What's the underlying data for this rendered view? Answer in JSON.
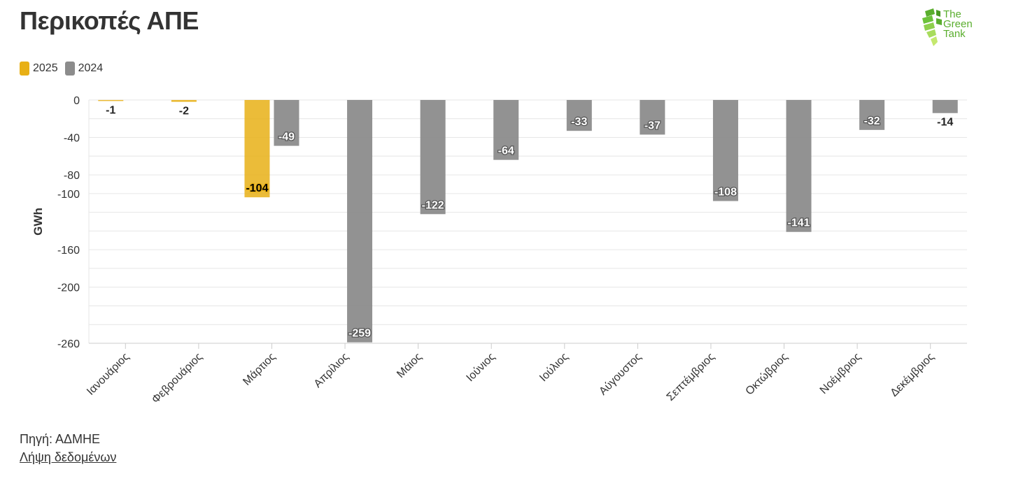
{
  "header": {
    "title": "Περικοπές ΑΠΕ",
    "logo_text_1": "The",
    "logo_text_2": "Green",
    "logo_text_3": "Tank"
  },
  "footer": {
    "source": "Πηγή: ΑΔΜΗΕ",
    "download": "Λήψη δεδομένων"
  },
  "colors": {
    "series_2025": "#e8b016",
    "series_2024": "#8c8c8c",
    "logo_green": "#5aae2e"
  },
  "chart_data": {
    "type": "bar",
    "title": "Περικοπές ΑΠΕ",
    "ylabel": "GWh",
    "xlabel": "",
    "ylim": [
      -260,
      0
    ],
    "yticks": [
      0,
      -40,
      -80,
      -100,
      -160,
      -200,
      -260
    ],
    "legend_position": "top-left",
    "grid": true,
    "categories": [
      "Ιανουάριος",
      "Φεβρουάριος",
      "Μάρτιος",
      "Απρίλιος",
      "Μάιος",
      "Ιούνιος",
      "Ιούλιος",
      "Αύγουστος",
      "Σεπτέμβριος",
      "Οκτώβριος",
      "Νοέμβριος",
      "Δεκέμβριος"
    ],
    "series": [
      {
        "name": "2025",
        "values": [
          -1,
          -2,
          -104,
          null,
          null,
          null,
          null,
          null,
          null,
          null,
          null,
          null
        ]
      },
      {
        "name": "2024",
        "values": [
          null,
          null,
          -49,
          -259,
          -122,
          -64,
          -33,
          -37,
          -108,
          -141,
          -32,
          -14
        ]
      }
    ]
  }
}
